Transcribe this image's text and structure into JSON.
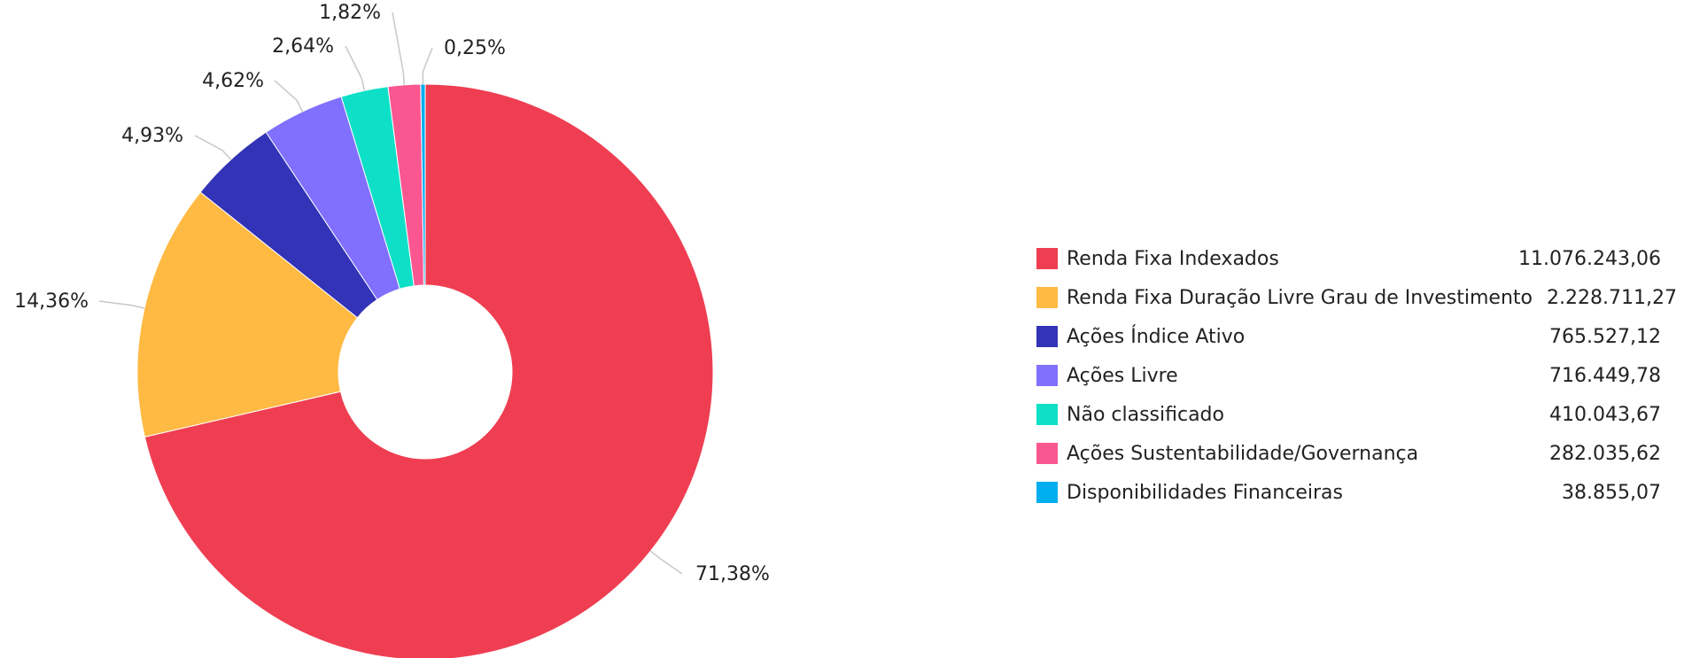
{
  "chart_data": {
    "type": "pie",
    "title": "",
    "donut": true,
    "slices": [
      {
        "label": "Renda Fixa Indexados",
        "value": 11076243.06,
        "value_text": "11.076.243,06",
        "percent": 71.38,
        "percent_text": "71,38%",
        "color": "#EF3E52"
      },
      {
        "label": "Renda Fixa Duração Livre Grau de Investimento",
        "value": 2228711.27,
        "value_text": "2.228.711,27",
        "percent": 14.36,
        "percent_text": "14,36%",
        "color": "#FFBA44"
      },
      {
        "label": "Ações Índice Ativo",
        "value": 765527.12,
        "value_text": "765.527,12",
        "percent": 4.93,
        "percent_text": "4,93%",
        "color": "#3333B7"
      },
      {
        "label": "Ações Livre",
        "value": 716449.78,
        "value_text": "716.449,78",
        "percent": 4.62,
        "percent_text": "4,62%",
        "color": "#8070FD"
      },
      {
        "label": "Não classificado",
        "value": 410043.67,
        "value_text": "410.043,67",
        "percent": 2.64,
        "percent_text": "2,64%",
        "color": "#0DE0C7"
      },
      {
        "label": "Ações Sustentabilidade/Governança",
        "value": 282035.62,
        "value_text": "282.035,62",
        "percent": 1.82,
        "percent_text": "1,82%",
        "color": "#FA5790"
      },
      {
        "label": "Disponibilidades Financeiras",
        "value": 38855.07,
        "value_text": "38.855,07",
        "percent": 0.25,
        "percent_text": "0,25%",
        "color": "#00AEEF"
      }
    ],
    "legend_placement": "right"
  }
}
